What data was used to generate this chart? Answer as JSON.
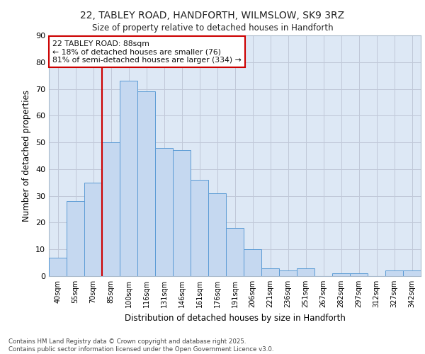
{
  "title1": "22, TABLEY ROAD, HANDFORTH, WILMSLOW, SK9 3RZ",
  "title2": "Size of property relative to detached houses in Handforth",
  "xlabel": "Distribution of detached houses by size in Handforth",
  "ylabel": "Number of detached properties",
  "categories": [
    "40sqm",
    "55sqm",
    "70sqm",
    "85sqm",
    "100sqm",
    "116sqm",
    "131sqm",
    "146sqm",
    "161sqm",
    "176sqm",
    "191sqm",
    "206sqm",
    "221sqm",
    "236sqm",
    "251sqm",
    "267sqm",
    "282sqm",
    "297sqm",
    "312sqm",
    "327sqm",
    "342sqm"
  ],
  "values": [
    7,
    28,
    35,
    50,
    73,
    69,
    48,
    47,
    36,
    31,
    18,
    10,
    3,
    2,
    3,
    0,
    1,
    1,
    0,
    2,
    2
  ],
  "bar_color": "#c5d8f0",
  "bar_edge_color": "#5b9bd5",
  "grid_color": "#c0c8d8",
  "background_color": "#dde8f5",
  "vline_x_index": 3,
  "vline_color": "#cc0000",
  "annotation_text": "22 TABLEY ROAD: 88sqm\n← 18% of detached houses are smaller (76)\n81% of semi-detached houses are larger (334) →",
  "annotation_box_color": "#ffffff",
  "annotation_box_edge": "#cc0000",
  "footnote": "Contains HM Land Registry data © Crown copyright and database right 2025.\nContains public sector information licensed under the Open Government Licence v3.0.",
  "ylim": [
    0,
    90
  ],
  "yticks": [
    0,
    10,
    20,
    30,
    40,
    50,
    60,
    70,
    80,
    90
  ]
}
